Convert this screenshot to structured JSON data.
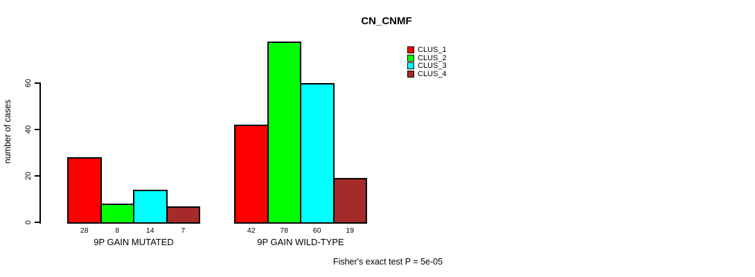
{
  "chart_data": {
    "type": "bar",
    "title": "CN_CNMF",
    "ylabel": "number of cases",
    "xlabel": "",
    "yticks": [
      0,
      20,
      40,
      60
    ],
    "ylim": [
      0,
      80
    ],
    "grid": false,
    "legend_position": "top-right",
    "bar_value_labels": true,
    "series": [
      {
        "name": "CLUS_1",
        "color": "#ff0000"
      },
      {
        "name": "CLUS_2",
        "color": "#00ff00"
      },
      {
        "name": "CLUS_3",
        "color": "#00ffff"
      },
      {
        "name": "CLUS_4",
        "color": "#a52a2a"
      }
    ],
    "categories": [
      "9P GAIN MUTATED",
      "9P GAIN WILD-TYPE"
    ],
    "groups": [
      {
        "label": "9P GAIN MUTATED",
        "values": [
          28,
          8,
          14,
          7
        ]
      },
      {
        "label": "9P GAIN WILD-TYPE",
        "values": [
          42,
          78,
          60,
          19
        ]
      }
    ],
    "annotation": "Fisher's exact test P = 5e-05"
  }
}
